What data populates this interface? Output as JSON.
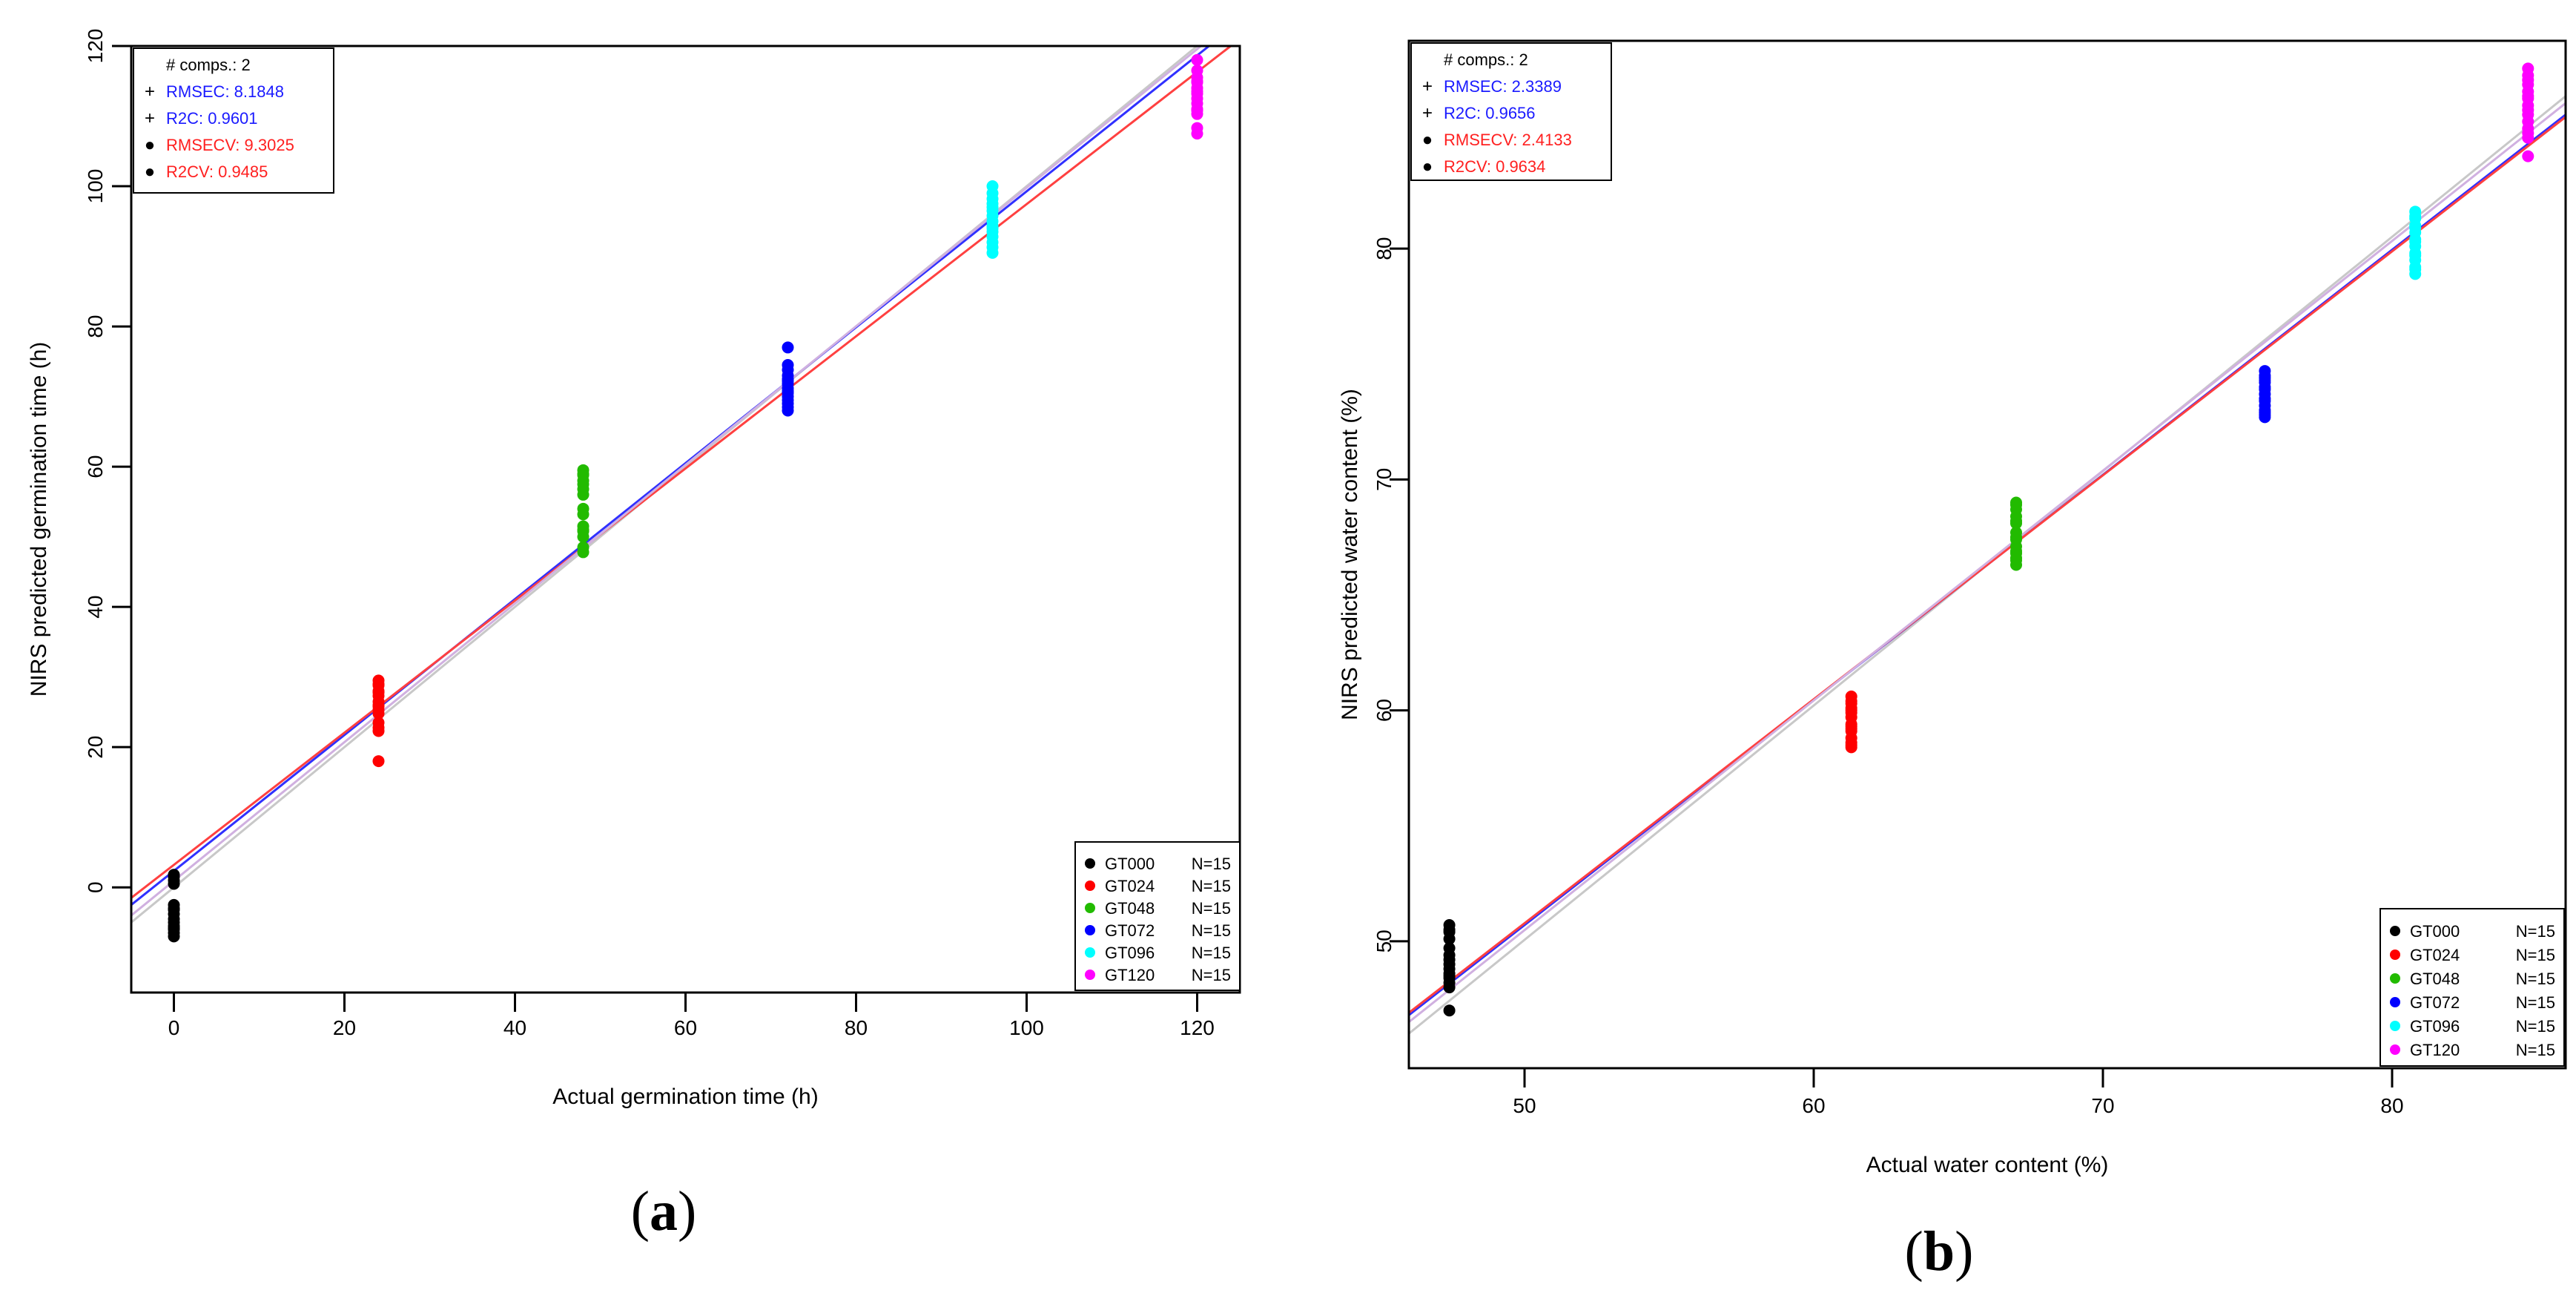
{
  "chart_data": [
    {
      "id": "a",
      "type": "scatter",
      "panel_label": "(a)",
      "panel_letter": "a",
      "xlabel": "Actual germination time (h)",
      "ylabel": "NIRS predicted germination time (h)",
      "xlim": [
        -5,
        125
      ],
      "ylim": [
        -15,
        120
      ],
      "xticks": [
        0,
        20,
        40,
        60,
        80,
        100,
        120
      ],
      "yticks": [
        0,
        20,
        40,
        60,
        80,
        100,
        120
      ],
      "stats": [
        {
          "symbol": "",
          "text": "# comps.: 2",
          "color": "#000000"
        },
        {
          "symbol": "+",
          "text": "RMSEC: 8.1848",
          "color": "#1a1aff"
        },
        {
          "symbol": "+",
          "text": "R2C: 0.9601",
          "color": "#1a1aff"
        },
        {
          "symbol": "●",
          "text": "RMSECV: 9.3025",
          "color": "#ff2020"
        },
        {
          "symbol": "●",
          "text": "R2CV: 0.9485",
          "color": "#ff2020"
        }
      ],
      "legend": [
        {
          "label": "GT000",
          "n": "N=15",
          "color": "#000000"
        },
        {
          "label": "GT024",
          "n": "N=15",
          "color": "#ff0000"
        },
        {
          "label": "GT048",
          "n": "N=15",
          "color": "#22bb00"
        },
        {
          "label": "GT072",
          "n": "N=15",
          "color": "#0000ff"
        },
        {
          "label": "GT096",
          "n": "N=15",
          "color": "#00ffff"
        },
        {
          "label": "GT120",
          "n": "N=15",
          "color": "#ff00ff"
        }
      ],
      "legend_position": "bottom-right",
      "stats_position": "top-left",
      "series": [
        {
          "name": "GT000",
          "color": "#000000",
          "x": 0,
          "y": [
            1.5,
            1.0,
            0.5,
            -2.5,
            -3.2,
            -3.8,
            -4.5,
            -5.0,
            -5.5,
            -6.0,
            -6.5,
            -7.0,
            1.8,
            -3.0,
            -5.8
          ]
        },
        {
          "name": "GT024",
          "color": "#ff0000",
          "x": 24,
          "y": [
            29.5,
            28.8,
            28.0,
            27.3,
            26.5,
            26.0,
            25.3,
            24.8,
            23.5,
            22.8,
            22.3,
            18.0,
            29.0,
            27.8,
            25.8
          ]
        },
        {
          "name": "GT048",
          "color": "#22bb00",
          "x": 48,
          "y": [
            59.5,
            58.8,
            58.0,
            56.8,
            56.0,
            54.0,
            53.2,
            51.5,
            50.8,
            50.0,
            48.5,
            47.8,
            59.0,
            57.5,
            51.0
          ]
        },
        {
          "name": "GT072",
          "color": "#0000ff",
          "x": 72,
          "y": [
            77.0,
            74.5,
            73.8,
            73.0,
            72.5,
            71.8,
            71.2,
            70.5,
            70.0,
            69.5,
            69.0,
            68.5,
            68.0,
            72.2,
            70.8
          ]
        },
        {
          "name": "GT096",
          "color": "#00ffff",
          "x": 96,
          "y": [
            100.0,
            99.0,
            98.2,
            97.5,
            96.5,
            95.8,
            95.0,
            94.3,
            93.5,
            92.8,
            92.0,
            91.3,
            90.5,
            97.0,
            94.0
          ]
        },
        {
          "name": "GT120",
          "color": "#ff00ff",
          "x": 120,
          "y": [
            118.0,
            116.5,
            115.5,
            114.8,
            114.0,
            113.2,
            112.5,
            111.8,
            111.0,
            110.3,
            108.3,
            107.5,
            115.0,
            113.5,
            110.8
          ]
        }
      ],
      "lines": [
        {
          "name": "ideal",
          "color": "#c8c8c8",
          "x": [
            -5,
            125
          ],
          "y": [
            -5,
            125
          ]
        },
        {
          "name": "calibration",
          "color": "#3030ff",
          "x": [
            -5,
            125
          ],
          "y": [
            -2.5,
            123.5
          ]
        },
        {
          "name": "cross-validation",
          "color": "#ff4040",
          "x": [
            -5,
            125
          ],
          "y": [
            -1.5,
            121.0
          ]
        },
        {
          "name": "reference",
          "color": "#d0b0e0",
          "x": [
            -5,
            125
          ],
          "y": [
            -4.0,
            124.5
          ]
        }
      ]
    },
    {
      "id": "b",
      "type": "scatter",
      "panel_label": "(b)",
      "panel_letter": "b",
      "xlabel": "Actual water content (%)",
      "ylabel": "NIRS predicted water content (%)",
      "xlim": [
        46,
        86
      ],
      "ylim": [
        44.5,
        89
      ],
      "xticks": [
        50,
        60,
        70,
        80
      ],
      "yticks": [
        50,
        60,
        70,
        80
      ],
      "stats": [
        {
          "symbol": "",
          "text": "# comps.: 2",
          "color": "#000000"
        },
        {
          "symbol": "+",
          "text": "RMSEC: 2.3389",
          "color": "#1a1aff"
        },
        {
          "symbol": "+",
          "text": "R2C: 0.9656",
          "color": "#1a1aff"
        },
        {
          "symbol": "●",
          "text": "RMSECV: 2.4133",
          "color": "#ff2020"
        },
        {
          "symbol": "●",
          "text": "R2CV: 0.9634",
          "color": "#ff2020"
        }
      ],
      "legend": [
        {
          "label": "GT000",
          "n": "N=15",
          "color": "#000000"
        },
        {
          "label": "GT024",
          "n": "N=15",
          "color": "#ff0000"
        },
        {
          "label": "GT048",
          "n": "N=15",
          "color": "#22bb00"
        },
        {
          "label": "GT072",
          "n": "N=15",
          "color": "#0000ff"
        },
        {
          "label": "GT096",
          "n": "N=15",
          "color": "#00ffff"
        },
        {
          "label": "GT120",
          "n": "N=15",
          "color": "#ff00ff"
        }
      ],
      "legend_position": "bottom-right",
      "stats_position": "top-left",
      "series": [
        {
          "name": "GT000",
          "color": "#000000",
          "x": 47.4,
          "y": [
            50.7,
            50.4,
            50.1,
            49.7,
            49.4,
            49.0,
            48.8,
            48.6,
            48.4,
            48.2,
            48.0,
            47.0,
            50.5,
            49.2,
            48.5
          ]
        },
        {
          "name": "GT024",
          "color": "#ff0000",
          "x": 61.3,
          "y": [
            60.6,
            60.3,
            60.0,
            59.7,
            59.3,
            59.1,
            58.6,
            58.4,
            60.4,
            59.9,
            59.4,
            58.5,
            60.1,
            59.2,
            58.8
          ]
        },
        {
          "name": "GT048",
          "color": "#22bb00",
          "x": 67.0,
          "y": [
            69.0,
            68.7,
            68.4,
            68.1,
            67.7,
            67.4,
            67.1,
            66.8,
            66.5,
            66.3,
            68.9,
            68.2,
            67.5,
            66.9,
            66.6
          ]
        },
        {
          "name": "GT072",
          "color": "#0000ff",
          "x": 75.6,
          "y": [
            74.7,
            74.4,
            74.2,
            73.9,
            73.7,
            73.4,
            73.2,
            72.9,
            72.7,
            74.5,
            74.0,
            73.5,
            73.0,
            72.8,
            74.3
          ]
        },
        {
          "name": "GT096",
          "color": "#00ffff",
          "x": 80.8,
          "y": [
            81.6,
            81.3,
            81.0,
            80.7,
            80.4,
            80.1,
            79.8,
            79.5,
            79.2,
            78.9,
            81.4,
            80.9,
            80.3,
            79.7,
            79.1
          ]
        },
        {
          "name": "GT120",
          "color": "#ff00ff",
          "x": 84.7,
          "y": [
            87.8,
            87.5,
            87.1,
            86.8,
            86.5,
            86.2,
            85.8,
            85.5,
            85.2,
            84.8,
            84.0,
            87.3,
            86.0,
            85.0,
            86.6
          ]
        }
      ],
      "lines": [
        {
          "name": "ideal",
          "color": "#c8c8c8",
          "x": [
            46,
            86
          ],
          "y": [
            46.0,
            86.6
          ]
        },
        {
          "name": "calibration",
          "color": "#3030ff",
          "x": [
            46,
            86
          ],
          "y": [
            46.8,
            85.8
          ]
        },
        {
          "name": "cross-validation",
          "color": "#ff4040",
          "x": [
            46,
            86
          ],
          "y": [
            46.9,
            85.7
          ]
        },
        {
          "name": "reference",
          "color": "#d0b0e0",
          "x": [
            46,
            86
          ],
          "y": [
            46.5,
            86.3
          ]
        }
      ]
    }
  ]
}
